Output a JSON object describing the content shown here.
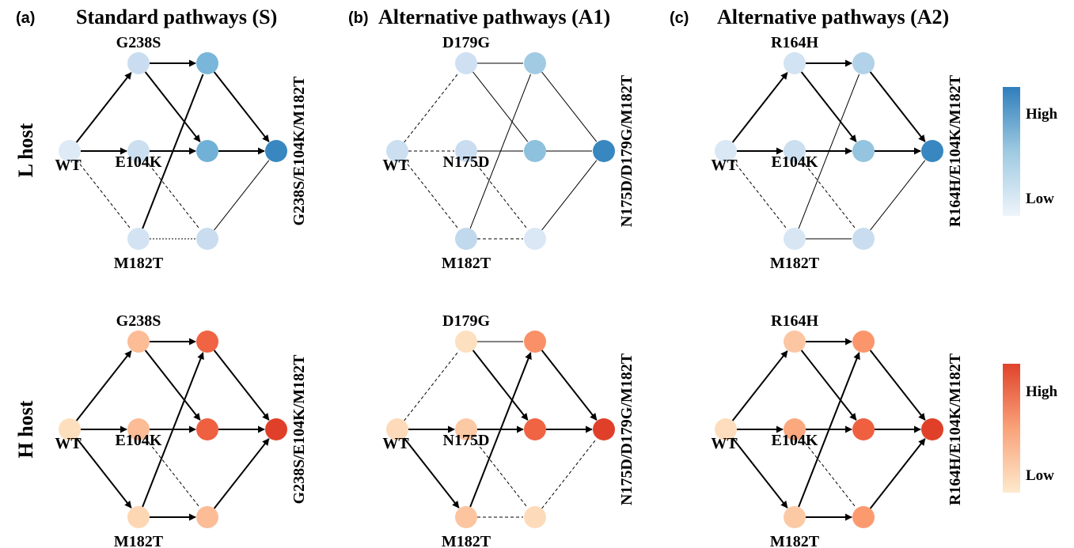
{
  "panels": [
    {
      "tag": "(a)",
      "title": "Standard pathways (S)",
      "labels": {
        "top": "G238S",
        "mid": "E104K",
        "bot": "M182T",
        "wt": "WT",
        "final": "G238S/E104K/M182T"
      }
    },
    {
      "tag": "(b)",
      "title": "Alternative pathways (A1)",
      "labels": {
        "top": "D179G",
        "mid": "N175D",
        "bot": "M182T",
        "wt": "WT",
        "final": "N175D/D179G/M182T"
      }
    },
    {
      "tag": "(c)",
      "title": "Alternative pathways (A2)",
      "labels": {
        "top": "R164H",
        "mid": "E104K",
        "bot": "M182T",
        "wt": "WT",
        "final": "R164H/E104K/M182T"
      }
    }
  ],
  "hosts": [
    {
      "label": "L host",
      "scale": "blue",
      "legend": {
        "high": "High",
        "low": "Low"
      }
    },
    {
      "label": "H host",
      "scale": "red",
      "legend": {
        "high": "High",
        "low": "Low"
      }
    }
  ],
  "colors": {
    "blue": [
      "#e4eef8",
      "#c6dbef",
      "#9ecae1",
      "#6baed6",
      "#3182bd"
    ],
    "red": [
      "#fde5c6",
      "#fcc5a0",
      "#fc9a6f",
      "#f26a47",
      "#de3a25"
    ]
  },
  "graphs": [
    [
      {
        "nodes": {
          "wt": 0.05,
          "a": 0.22,
          "b": 0.2,
          "c": 0.14,
          "ab": 0.68,
          "ac": 0.72,
          "bc": 0.22,
          "abc": 0.97
        },
        "edges": [
          {
            "from": "wt",
            "to": "a",
            "style": "arrow"
          },
          {
            "from": "wt",
            "to": "b",
            "style": "arrow"
          },
          {
            "from": "wt",
            "to": "c",
            "style": "dashed"
          },
          {
            "from": "a",
            "to": "ab",
            "style": "arrow"
          },
          {
            "from": "a",
            "to": "ac",
            "style": "arrow"
          },
          {
            "from": "b",
            "to": "ac",
            "style": "arrow"
          },
          {
            "from": "b",
            "to": "bc",
            "style": "dashed"
          },
          {
            "from": "c",
            "to": "ab",
            "style": "bold"
          },
          {
            "from": "c",
            "to": "bc",
            "style": "dotted"
          },
          {
            "from": "ab",
            "to": "abc",
            "style": "arrow"
          },
          {
            "from": "ac",
            "to": "abc",
            "style": "arrow"
          },
          {
            "from": "bc",
            "to": "abc",
            "style": "thin"
          }
        ]
      },
      {
        "nodes": {
          "wt": 0.2,
          "a": 0.18,
          "b": 0.22,
          "c": 0.28,
          "ab": 0.48,
          "ac": 0.58,
          "bc": 0.08,
          "abc": 0.97
        },
        "edges": [
          {
            "from": "wt",
            "to": "a",
            "style": "dashed"
          },
          {
            "from": "wt",
            "to": "b",
            "style": "dashed"
          },
          {
            "from": "wt",
            "to": "c",
            "style": "dashed"
          },
          {
            "from": "a",
            "to": "ab",
            "style": "thin"
          },
          {
            "from": "a",
            "to": "ac",
            "style": "thin"
          },
          {
            "from": "b",
            "to": "ac",
            "style": "thin"
          },
          {
            "from": "b",
            "to": "bc",
            "style": "dashed"
          },
          {
            "from": "c",
            "to": "ab",
            "style": "thin"
          },
          {
            "from": "c",
            "to": "bc",
            "style": "dashed"
          },
          {
            "from": "ab",
            "to": "abc",
            "style": "thin"
          },
          {
            "from": "ac",
            "to": "abc",
            "style": "thin"
          },
          {
            "from": "bc",
            "to": "abc",
            "style": "thin"
          }
        ]
      },
      {
        "nodes": {
          "wt": 0.08,
          "a": 0.15,
          "b": 0.2,
          "c": 0.1,
          "ab": 0.38,
          "ac": 0.55,
          "bc": 0.22,
          "abc": 0.97
        },
        "edges": [
          {
            "from": "wt",
            "to": "a",
            "style": "arrow"
          },
          {
            "from": "wt",
            "to": "b",
            "style": "arrow"
          },
          {
            "from": "wt",
            "to": "c",
            "style": "dashed"
          },
          {
            "from": "a",
            "to": "ab",
            "style": "arrow"
          },
          {
            "from": "a",
            "to": "ac",
            "style": "arrow"
          },
          {
            "from": "b",
            "to": "ac",
            "style": "arrow"
          },
          {
            "from": "b",
            "to": "bc",
            "style": "dashed"
          },
          {
            "from": "c",
            "to": "ab",
            "style": "thin"
          },
          {
            "from": "c",
            "to": "bc",
            "style": "thin"
          },
          {
            "from": "ab",
            "to": "abc",
            "style": "arrow"
          },
          {
            "from": "ac",
            "to": "abc",
            "style": "arrow"
          },
          {
            "from": "bc",
            "to": "abc",
            "style": "thin"
          }
        ]
      }
    ],
    [
      {
        "nodes": {
          "wt": 0.05,
          "a": 0.3,
          "b": 0.3,
          "c": 0.12,
          "ab": 0.78,
          "ac": 0.8,
          "bc": 0.3,
          "abc": 0.97
        },
        "edges": [
          {
            "from": "wt",
            "to": "a",
            "style": "arrow"
          },
          {
            "from": "wt",
            "to": "b",
            "style": "arrow"
          },
          {
            "from": "wt",
            "to": "c",
            "style": "arrow"
          },
          {
            "from": "a",
            "to": "ab",
            "style": "arrow"
          },
          {
            "from": "a",
            "to": "ac",
            "style": "arrow"
          },
          {
            "from": "b",
            "to": "ac",
            "style": "arrow"
          },
          {
            "from": "b",
            "to": "bc",
            "style": "dashed"
          },
          {
            "from": "c",
            "to": "ab",
            "style": "arrow"
          },
          {
            "from": "c",
            "to": "bc",
            "style": "arrow"
          },
          {
            "from": "ab",
            "to": "abc",
            "style": "arrow"
          },
          {
            "from": "ac",
            "to": "abc",
            "style": "arrow"
          },
          {
            "from": "bc",
            "to": "abc",
            "style": "arrow"
          }
        ]
      },
      {
        "nodes": {
          "wt": 0.08,
          "a": 0.04,
          "b": 0.22,
          "c": 0.25,
          "ab": 0.55,
          "ac": 0.78,
          "bc": 0.08,
          "abc": 0.97
        },
        "edges": [
          {
            "from": "wt",
            "to": "a",
            "style": "dashed"
          },
          {
            "from": "wt",
            "to": "b",
            "style": "arrow"
          },
          {
            "from": "wt",
            "to": "c",
            "style": "arrow"
          },
          {
            "from": "a",
            "to": "ab",
            "style": "thin"
          },
          {
            "from": "a",
            "to": "ac",
            "style": "arrow"
          },
          {
            "from": "b",
            "to": "ac",
            "style": "arrow"
          },
          {
            "from": "b",
            "to": "bc",
            "style": "dashed"
          },
          {
            "from": "c",
            "to": "ab",
            "style": "arrow"
          },
          {
            "from": "c",
            "to": "bc",
            "style": "dashed"
          },
          {
            "from": "ab",
            "to": "abc",
            "style": "arrow"
          },
          {
            "from": "ac",
            "to": "abc",
            "style": "arrow"
          },
          {
            "from": "bc",
            "to": "abc",
            "style": "dashed"
          }
        ]
      },
      {
        "nodes": {
          "wt": 0.06,
          "a": 0.24,
          "b": 0.42,
          "c": 0.22,
          "ab": 0.52,
          "ac": 0.8,
          "bc": 0.5,
          "abc": 0.97
        },
        "edges": [
          {
            "from": "wt",
            "to": "a",
            "style": "arrow"
          },
          {
            "from": "wt",
            "to": "b",
            "style": "arrow"
          },
          {
            "from": "wt",
            "to": "c",
            "style": "arrow"
          },
          {
            "from": "a",
            "to": "ab",
            "style": "arrow"
          },
          {
            "from": "a",
            "to": "ac",
            "style": "arrow"
          },
          {
            "from": "b",
            "to": "ac",
            "style": "arrow"
          },
          {
            "from": "b",
            "to": "bc",
            "style": "dashed"
          },
          {
            "from": "c",
            "to": "ab",
            "style": "arrow"
          },
          {
            "from": "c",
            "to": "bc",
            "style": "arrow"
          },
          {
            "from": "ab",
            "to": "abc",
            "style": "arrow"
          },
          {
            "from": "ac",
            "to": "abc",
            "style": "arrow"
          },
          {
            "from": "bc",
            "to": "abc",
            "style": "arrow"
          }
        ]
      }
    ]
  ]
}
